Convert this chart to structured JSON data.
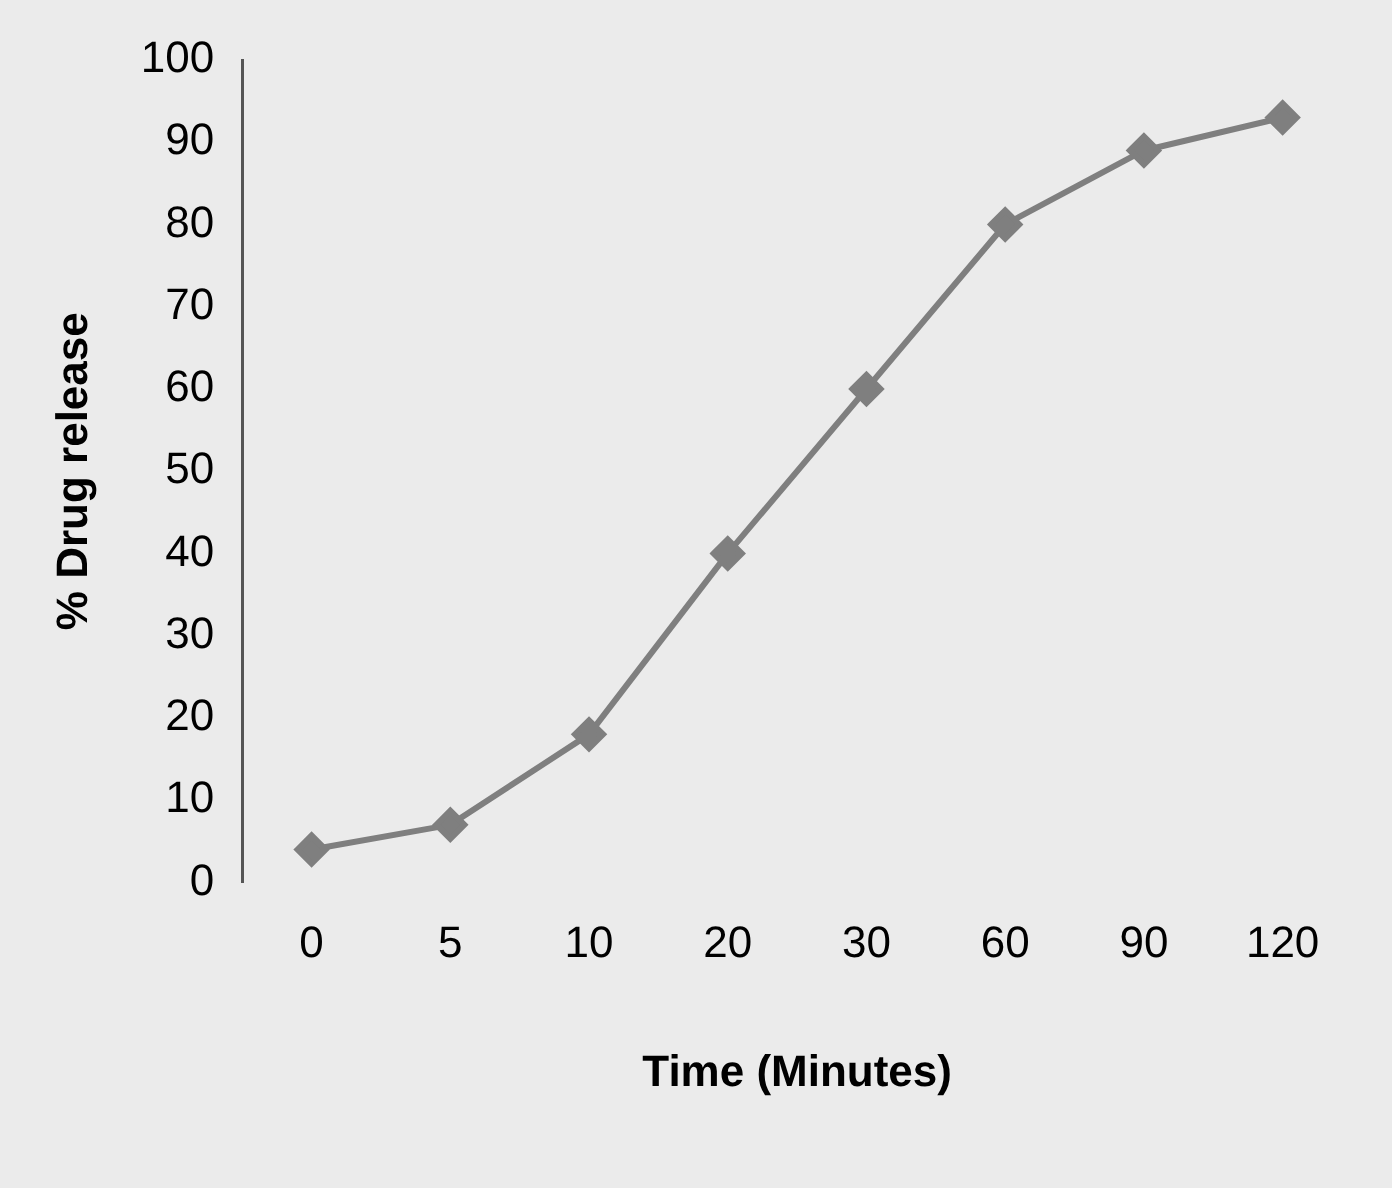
{
  "chart_data": {
    "type": "line",
    "xlabel": "Time (Minutes)",
    "ylabel": "% Drug release",
    "categories": [
      "0",
      "5",
      "10",
      "20",
      "30",
      "60",
      "90",
      "120"
    ],
    "series": [
      {
        "color": "#7f7f7f",
        "values": [
          4,
          7,
          18,
          40,
          60,
          80,
          89,
          93
        ]
      }
    ],
    "ylim": [
      0,
      100
    ],
    "yticks": [
      0,
      10,
      20,
      30,
      40,
      50,
      60,
      70,
      80,
      90,
      100
    ],
    "grid": false,
    "legend": false,
    "marker": "diamond",
    "line_style": "solid"
  }
}
